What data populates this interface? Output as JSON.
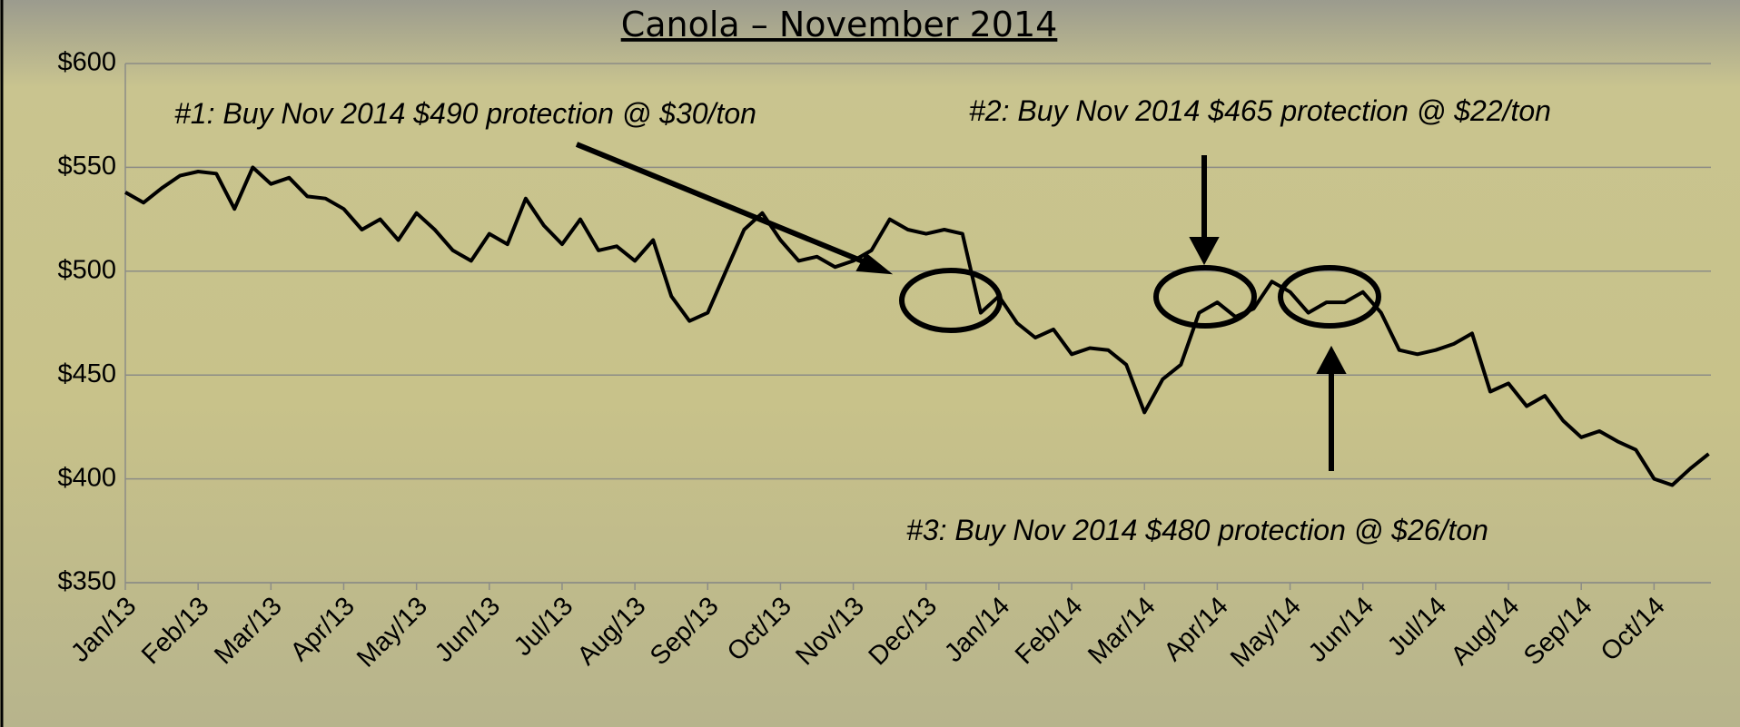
{
  "chart_data": {
    "type": "line",
    "title": "Canola – November 2014",
    "annotations": [
      "#1: Buy Nov 2014 $490 protection @ $30/ton",
      "#2: Buy Nov 2014 $465 protection @ $22/ton",
      "#3: Buy Nov 2014 $480 protection @ $26/ton"
    ],
    "categories": [
      "Jan/13",
      null,
      null,
      null,
      "Feb/13",
      null,
      null,
      null,
      "Mar/13",
      null,
      null,
      null,
      "Apr/13",
      null,
      null,
      null,
      "May/13",
      null,
      null,
      null,
      "Jun/13",
      null,
      null,
      null,
      "Jul/13",
      null,
      null,
      null,
      "Aug/13",
      null,
      null,
      null,
      "Sep/13",
      null,
      null,
      null,
      "Oct/13",
      null,
      null,
      null,
      "Nov/13",
      null,
      null,
      null,
      "Dec/13",
      null,
      null,
      null,
      "Jan/14",
      null,
      null,
      null,
      "Feb/14",
      null,
      null,
      null,
      "Mar/14",
      null,
      null,
      null,
      "Apr/14",
      null,
      null,
      null,
      "May/14",
      null,
      null,
      null,
      "Jun/14",
      null,
      null,
      null,
      "Jul/14",
      null,
      null,
      null,
      "Aug/14",
      null,
      null,
      null,
      "Sep/14",
      null,
      null,
      null,
      "Oct/14",
      null,
      null,
      null
    ],
    "values": [
      538,
      533,
      540,
      546,
      548,
      547,
      530,
      550,
      542,
      545,
      536,
      535,
      530,
      520,
      525,
      515,
      528,
      520,
      510,
      505,
      518,
      513,
      535,
      522,
      513,
      525,
      510,
      512,
      505,
      515,
      488,
      476,
      480,
      500,
      520,
      528,
      515,
      505,
      507,
      502,
      505,
      510,
      525,
      520,
      518,
      520,
      518,
      480,
      488,
      475,
      468,
      472,
      460,
      463,
      462,
      455,
      432,
      448,
      455,
      480,
      485,
      478,
      482,
      495,
      490,
      480,
      485,
      485,
      490,
      480,
      462,
      460,
      462,
      465,
      470,
      442,
      446,
      435,
      440,
      428,
      420,
      423,
      418,
      414,
      400,
      397,
      405,
      412
    ],
    "color": "#000000",
    "ylim": [
      350,
      600
    ],
    "yticks": [
      {
        "value": 350,
        "label": "$350"
      },
      {
        "value": 400,
        "label": "$400"
      },
      {
        "value": 450,
        "label": "$450"
      },
      {
        "value": 500,
        "label": "$500"
      },
      {
        "value": 550,
        "label": "$550"
      },
      {
        "value": 600,
        "label": "$600"
      }
    ],
    "grid": true
  }
}
